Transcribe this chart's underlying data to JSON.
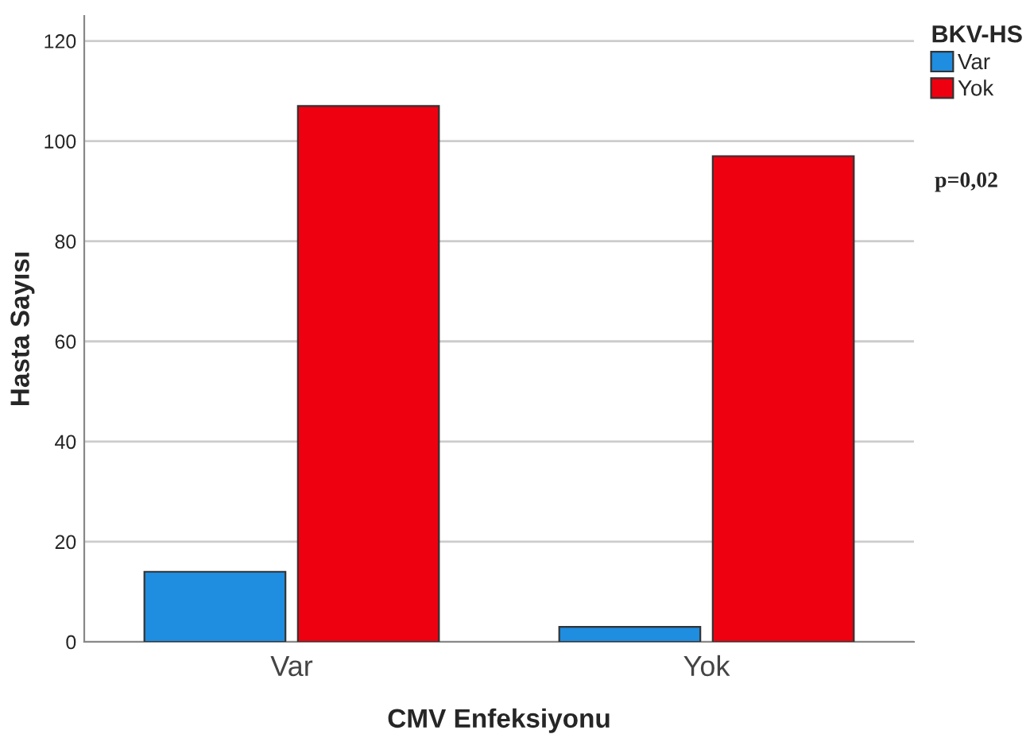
{
  "chart_data": {
    "type": "bar",
    "xlabel": "CMV Enfeksiyonu",
    "ylabel": "Hasta Sayısı",
    "legend_title": "BKV-HS",
    "categories": [
      "Var",
      "Yok"
    ],
    "series": [
      {
        "name": "Var",
        "color": "#1f8de0",
        "values": [
          14,
          3
        ]
      },
      {
        "name": "Yok",
        "color": "#ee0010",
        "values": [
          107,
          97
        ]
      }
    ],
    "ylim": [
      0,
      125
    ],
    "yticks": [
      0,
      20,
      40,
      60,
      80,
      100,
      120
    ],
    "grid": "y",
    "legend": "right",
    "annotations": [
      "p=0,02"
    ]
  }
}
